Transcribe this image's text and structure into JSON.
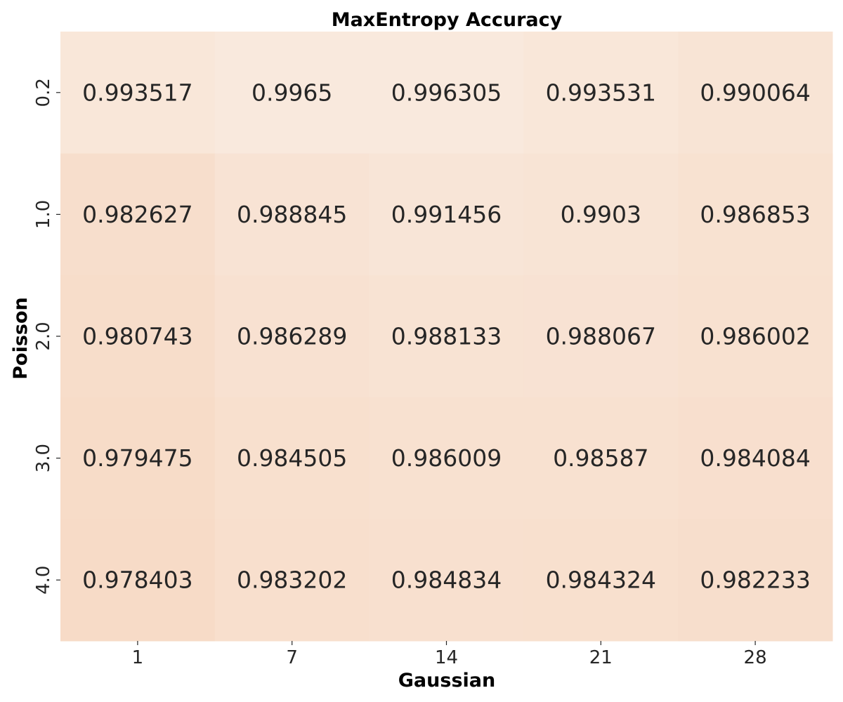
{
  "chart_data": {
    "type": "heatmap",
    "title": "MaxEntropy Accuracy",
    "xlabel": "Gaussian",
    "ylabel": "Poisson",
    "x_categories": [
      "1",
      "7",
      "14",
      "21",
      "28"
    ],
    "y_categories": [
      "0.2",
      "1.0",
      "2.0",
      "3.0",
      "4.0"
    ],
    "values": [
      [
        0.993517,
        0.9965,
        0.996305,
        0.993531,
        0.990064
      ],
      [
        0.982627,
        0.988845,
        0.991456,
        0.9903,
        0.986853
      ],
      [
        0.980743,
        0.986289,
        0.988133,
        0.988067,
        0.986002
      ],
      [
        0.979475,
        0.984505,
        0.986009,
        0.98587,
        0.984084
      ],
      [
        0.978403,
        0.983202,
        0.984834,
        0.984324,
        0.982233
      ]
    ],
    "cell_labels": [
      [
        "0.993517",
        "0.9965",
        "0.996305",
        "0.993531",
        "0.990064"
      ],
      [
        "0.982627",
        "0.988845",
        "0.991456",
        "0.9903",
        "0.986853"
      ],
      [
        "0.980743",
        "0.986289",
        "0.988133",
        "0.988067",
        "0.986002"
      ],
      [
        "0.979475",
        "0.984505",
        "0.986009",
        "0.98587",
        "0.984084"
      ],
      [
        "0.978403",
        "0.983202",
        "0.984834",
        "0.984324",
        "0.982233"
      ]
    ],
    "colorbar": false,
    "grid": false,
    "colors": {
      "low": "#f7dbc7",
      "high": "#f9e9dd",
      "text": "#262626"
    }
  }
}
